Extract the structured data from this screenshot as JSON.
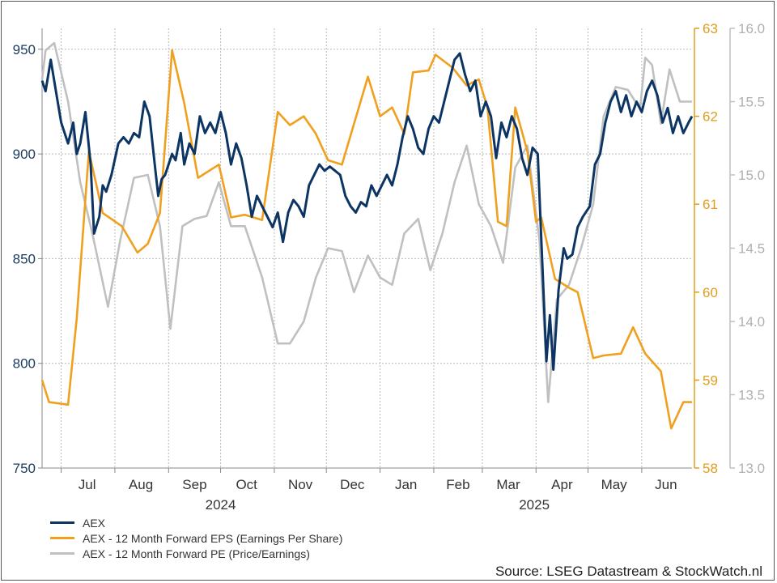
{
  "chart_data": {
    "type": "line",
    "title": "",
    "x_months": [
      "Jul",
      "Aug",
      "Sep",
      "Oct",
      "Nov",
      "Dec",
      "Jan",
      "Feb",
      "Mar",
      "Apr",
      "May",
      "Jun"
    ],
    "x_years": [
      "2024",
      "2025"
    ],
    "x_range": [
      "2024-06-20",
      "2025-06-30"
    ],
    "axes": {
      "left": {
        "min": 750,
        "max": 960,
        "ticks": [
          750,
          800,
          850,
          900,
          950
        ],
        "color": "#1a3a5f"
      },
      "right1": {
        "min": 58,
        "max": 63,
        "ticks": [
          58,
          59,
          60,
          61,
          62,
          63
        ],
        "color": "#e29d1b"
      },
      "right2": {
        "min": 13.0,
        "max": 16.0,
        "ticks": [
          "13.0",
          "13.5",
          "14.0",
          "14.5",
          "15.0",
          "15.5",
          "16.0"
        ],
        "color": "#b0b0b0"
      }
    },
    "grid": true,
    "series": [
      {
        "name": "AEX",
        "axis": "left",
        "color": "#0d3563",
        "points": [
          [
            "2024-06-20",
            935
          ],
          [
            "2024-06-22",
            930
          ],
          [
            "2024-06-25",
            945
          ],
          [
            "2024-06-28",
            930
          ],
          [
            "2024-07-01",
            915
          ],
          [
            "2024-07-05",
            905
          ],
          [
            "2024-07-08",
            915
          ],
          [
            "2024-07-10",
            900
          ],
          [
            "2024-07-12",
            905
          ],
          [
            "2024-07-15",
            920
          ],
          [
            "2024-07-18",
            895
          ],
          [
            "2024-07-20",
            862
          ],
          [
            "2024-07-23",
            870
          ],
          [
            "2024-07-25",
            885
          ],
          [
            "2024-07-27",
            882
          ],
          [
            "2024-07-30",
            890
          ],
          [
            "2024-08-03",
            905
          ],
          [
            "2024-08-06",
            908
          ],
          [
            "2024-08-09",
            905
          ],
          [
            "2024-08-12",
            910
          ],
          [
            "2024-08-15",
            908
          ],
          [
            "2024-08-18",
            925
          ],
          [
            "2024-08-21",
            918
          ],
          [
            "2024-08-24",
            895
          ],
          [
            "2024-08-26",
            880
          ],
          [
            "2024-08-28",
            888
          ],
          [
            "2024-08-30",
            890
          ],
          [
            "2024-09-03",
            900
          ],
          [
            "2024-09-05",
            897
          ],
          [
            "2024-09-08",
            910
          ],
          [
            "2024-09-10",
            895
          ],
          [
            "2024-09-13",
            905
          ],
          [
            "2024-09-16",
            900
          ],
          [
            "2024-09-19",
            918
          ],
          [
            "2024-09-22",
            910
          ],
          [
            "2024-09-25",
            915
          ],
          [
            "2024-09-28",
            910
          ],
          [
            "2024-10-01",
            920
          ],
          [
            "2024-10-04",
            910
          ],
          [
            "2024-10-07",
            895
          ],
          [
            "2024-10-10",
            905
          ],
          [
            "2024-10-13",
            898
          ],
          [
            "2024-10-16",
            885
          ],
          [
            "2024-10-19",
            870
          ],
          [
            "2024-10-22",
            880
          ],
          [
            "2024-10-25",
            875
          ],
          [
            "2024-10-28",
            870
          ],
          [
            "2024-10-31",
            865
          ],
          [
            "2024-11-03",
            872
          ],
          [
            "2024-11-06",
            858
          ],
          [
            "2024-11-09",
            872
          ],
          [
            "2024-11-12",
            878
          ],
          [
            "2024-11-15",
            875
          ],
          [
            "2024-11-18",
            870
          ],
          [
            "2024-11-21",
            885
          ],
          [
            "2024-11-24",
            890
          ],
          [
            "2024-11-27",
            895
          ],
          [
            "2024-11-30",
            892
          ],
          [
            "2024-12-03",
            894
          ],
          [
            "2024-12-06",
            892
          ],
          [
            "2024-12-09",
            890
          ],
          [
            "2024-12-12",
            880
          ],
          [
            "2024-12-15",
            875
          ],
          [
            "2024-12-18",
            872
          ],
          [
            "2024-12-21",
            877
          ],
          [
            "2024-12-24",
            875
          ],
          [
            "2024-12-27",
            885
          ],
          [
            "2024-12-30",
            880
          ],
          [
            "2025-01-02",
            885
          ],
          [
            "2025-01-05",
            890
          ],
          [
            "2025-01-08",
            885
          ],
          [
            "2025-01-11",
            895
          ],
          [
            "2025-01-14",
            908
          ],
          [
            "2025-01-17",
            918
          ],
          [
            "2025-01-20",
            912
          ],
          [
            "2025-01-23",
            903
          ],
          [
            "2025-01-26",
            900
          ],
          [
            "2025-01-29",
            912
          ],
          [
            "2025-02-01",
            918
          ],
          [
            "2025-02-04",
            915
          ],
          [
            "2025-02-07",
            925
          ],
          [
            "2025-02-10",
            935
          ],
          [
            "2025-02-13",
            945
          ],
          [
            "2025-02-16",
            948
          ],
          [
            "2025-02-19",
            938
          ],
          [
            "2025-02-22",
            930
          ],
          [
            "2025-02-25",
            935
          ],
          [
            "2025-02-28",
            918
          ],
          [
            "2025-03-03",
            925
          ],
          [
            "2025-03-06",
            918
          ],
          [
            "2025-03-09",
            898
          ],
          [
            "2025-03-12",
            915
          ],
          [
            "2025-03-15",
            908
          ],
          [
            "2025-03-18",
            918
          ],
          [
            "2025-03-21",
            912
          ],
          [
            "2025-03-24",
            898
          ],
          [
            "2025-03-27",
            890
          ],
          [
            "2025-03-30",
            903
          ],
          [
            "2025-04-02",
            900
          ],
          [
            "2025-04-04",
            860
          ],
          [
            "2025-04-07",
            801
          ],
          [
            "2025-04-09",
            823
          ],
          [
            "2025-04-11",
            797
          ],
          [
            "2025-04-14",
            835
          ],
          [
            "2025-04-17",
            855
          ],
          [
            "2025-04-19",
            850
          ],
          [
            "2025-04-22",
            852
          ],
          [
            "2025-04-25",
            865
          ],
          [
            "2025-04-28",
            870
          ],
          [
            "2025-05-02",
            875
          ],
          [
            "2025-05-05",
            895
          ],
          [
            "2025-05-08",
            900
          ],
          [
            "2025-05-11",
            915
          ],
          [
            "2025-05-14",
            925
          ],
          [
            "2025-05-17",
            930
          ],
          [
            "2025-05-20",
            920
          ],
          [
            "2025-05-23",
            928
          ],
          [
            "2025-05-26",
            918
          ],
          [
            "2025-05-29",
            925
          ],
          [
            "2025-06-01",
            920
          ],
          [
            "2025-06-04",
            930
          ],
          [
            "2025-06-07",
            935
          ],
          [
            "2025-06-10",
            928
          ],
          [
            "2025-06-13",
            915
          ],
          [
            "2025-06-16",
            922
          ],
          [
            "2025-06-19",
            910
          ],
          [
            "2025-06-22",
            918
          ],
          [
            "2025-06-25",
            910
          ],
          [
            "2025-06-28",
            915
          ],
          [
            "2025-06-30",
            918
          ]
        ]
      },
      {
        "name": "AEX - 12 Month Forward EPS (Earnings Per Share)",
        "axis": "right1",
        "color": "#f0a01e",
        "points": [
          [
            "2024-06-20",
            59.0
          ],
          [
            "2024-06-24",
            58.75
          ],
          [
            "2024-07-05",
            58.72
          ],
          [
            "2024-07-10",
            59.7
          ],
          [
            "2024-07-17",
            61.6
          ],
          [
            "2024-07-25",
            60.9
          ],
          [
            "2024-08-05",
            60.75
          ],
          [
            "2024-08-14",
            60.45
          ],
          [
            "2024-08-20",
            60.55
          ],
          [
            "2024-08-27",
            60.9
          ],
          [
            "2024-09-03",
            62.75
          ],
          [
            "2024-09-10",
            62.15
          ],
          [
            "2024-09-18",
            61.3
          ],
          [
            "2024-09-30",
            61.45
          ],
          [
            "2024-10-07",
            60.85
          ],
          [
            "2024-10-15",
            60.88
          ],
          [
            "2024-10-25",
            60.82
          ],
          [
            "2024-11-03",
            62.05
          ],
          [
            "2024-11-10",
            61.9
          ],
          [
            "2024-11-18",
            62.0
          ],
          [
            "2024-11-25",
            61.8
          ],
          [
            "2024-12-02",
            61.5
          ],
          [
            "2024-12-10",
            61.45
          ],
          [
            "2024-12-25",
            62.45
          ],
          [
            "2025-01-01",
            62.0
          ],
          [
            "2025-01-08",
            62.1
          ],
          [
            "2025-01-15",
            61.8
          ],
          [
            "2025-01-20",
            62.5
          ],
          [
            "2025-01-29",
            62.52
          ],
          [
            "2025-02-02",
            62.7
          ],
          [
            "2025-02-12",
            62.55
          ],
          [
            "2025-02-20",
            62.35
          ],
          [
            "2025-02-27",
            62.42
          ],
          [
            "2025-03-04",
            62.1
          ],
          [
            "2025-03-10",
            60.8
          ],
          [
            "2025-03-15",
            60.75
          ],
          [
            "2025-03-20",
            62.1
          ],
          [
            "2025-03-27",
            61.6
          ],
          [
            "2025-04-01",
            60.8
          ],
          [
            "2025-04-04",
            60.85
          ],
          [
            "2025-04-12",
            60.15
          ],
          [
            "2025-04-20",
            60.05
          ],
          [
            "2025-04-25",
            60.0
          ],
          [
            "2025-05-04",
            59.25
          ],
          [
            "2025-05-10",
            59.28
          ],
          [
            "2025-05-20",
            59.3
          ],
          [
            "2025-05-27",
            59.6
          ],
          [
            "2025-06-03",
            59.3
          ],
          [
            "2025-06-12",
            59.1
          ],
          [
            "2025-06-18",
            58.45
          ],
          [
            "2025-06-25",
            58.75
          ],
          [
            "2025-06-30",
            58.75
          ]
        ]
      },
      {
        "name": "AEX - 12 Month Forward PE (Price/Earnings)",
        "axis": "right2",
        "color": "#c0c0c0",
        "points": [
          [
            "2024-06-20",
            15.65
          ],
          [
            "2024-06-22",
            15.85
          ],
          [
            "2024-06-27",
            15.9
          ],
          [
            "2024-07-05",
            15.5
          ],
          [
            "2024-07-12",
            14.95
          ],
          [
            "2024-07-19",
            14.6
          ],
          [
            "2024-07-28",
            14.1
          ],
          [
            "2024-08-04",
            14.55
          ],
          [
            "2024-08-12",
            14.98
          ],
          [
            "2024-08-20",
            15.0
          ],
          [
            "2024-08-27",
            14.65
          ],
          [
            "2024-09-02",
            13.95
          ],
          [
            "2024-09-09",
            14.65
          ],
          [
            "2024-09-16",
            14.7
          ],
          [
            "2024-09-23",
            14.72
          ],
          [
            "2024-09-30",
            14.95
          ],
          [
            "2024-10-07",
            14.65
          ],
          [
            "2024-10-15",
            14.65
          ],
          [
            "2024-10-25",
            14.3
          ],
          [
            "2024-11-03",
            13.85
          ],
          [
            "2024-11-10",
            13.85
          ],
          [
            "2024-11-18",
            14.0
          ],
          [
            "2024-11-25",
            14.3
          ],
          [
            "2024-12-02",
            14.5
          ],
          [
            "2024-12-10",
            14.48
          ],
          [
            "2024-12-17",
            14.2
          ],
          [
            "2024-12-25",
            14.45
          ],
          [
            "2025-01-01",
            14.3
          ],
          [
            "2025-01-08",
            14.25
          ],
          [
            "2025-01-15",
            14.6
          ],
          [
            "2025-01-23",
            14.7
          ],
          [
            "2025-01-30",
            14.35
          ],
          [
            "2025-02-06",
            14.6
          ],
          [
            "2025-02-13",
            14.95
          ],
          [
            "2025-02-20",
            15.2
          ],
          [
            "2025-02-27",
            14.8
          ],
          [
            "2025-03-06",
            14.65
          ],
          [
            "2025-03-13",
            14.4
          ],
          [
            "2025-03-20",
            15.05
          ],
          [
            "2025-03-27",
            15.2
          ],
          [
            "2025-04-03",
            14.55
          ],
          [
            "2025-04-08",
            13.45
          ],
          [
            "2025-04-13",
            14.15
          ],
          [
            "2025-04-20",
            14.25
          ],
          [
            "2025-04-27",
            14.5
          ],
          [
            "2025-05-04",
            14.8
          ],
          [
            "2025-05-10",
            15.4
          ],
          [
            "2025-05-17",
            15.6
          ],
          [
            "2025-05-24",
            15.58
          ],
          [
            "2025-05-31",
            15.45
          ],
          [
            "2025-06-03",
            15.8
          ],
          [
            "2025-06-07",
            15.75
          ],
          [
            "2025-06-12",
            15.35
          ],
          [
            "2025-06-17",
            15.72
          ],
          [
            "2025-06-23",
            15.5
          ],
          [
            "2025-06-30",
            15.5
          ]
        ]
      }
    ],
    "legend_position": "bottom-left",
    "source": "Source: LSEG Datastream & StockWatch.nl"
  }
}
